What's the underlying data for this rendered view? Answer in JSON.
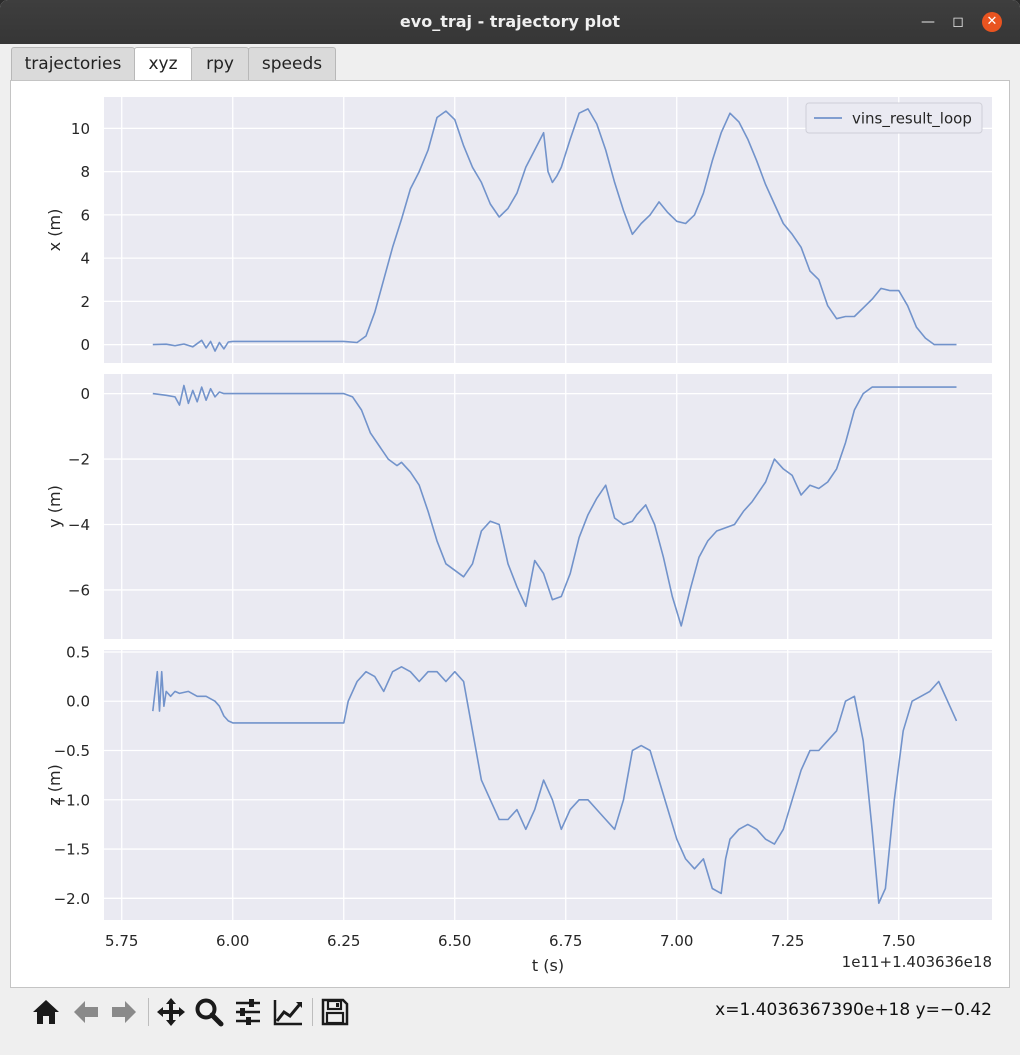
{
  "window": {
    "title": "evo_traj - trajectory plot"
  },
  "tabs": [
    {
      "label": "trajectories",
      "active": false
    },
    {
      "label": "xyz",
      "active": true
    },
    {
      "label": "rpy",
      "active": false
    },
    {
      "label": "speeds",
      "active": false
    }
  ],
  "toolbar": {
    "icons": [
      "home-icon",
      "back-arrow-icon",
      "forward-arrow-icon",
      "pan-icon",
      "zoom-icon",
      "subplots-config-icon",
      "edit-curves-icon",
      "save-icon"
    ],
    "coords": "x=1.4036367390e+18 y=−0.42"
  },
  "chart_data": [
    {
      "type": "line",
      "ylabel": "x (m)",
      "xlim": [
        5.71,
        7.71
      ],
      "ylim": [
        -0.85,
        11.45
      ],
      "yticks": [
        0,
        2,
        4,
        6,
        8,
        10
      ],
      "ytick_labels": [
        "0",
        "2",
        "4",
        "6",
        "8",
        "10"
      ],
      "legend": {
        "label": "vins_result_loop",
        "placement": "top-right"
      },
      "series": [
        {
          "name": "vins_result_loop",
          "color": "#7293cb",
          "x": [
            5.82,
            5.85,
            5.87,
            5.89,
            5.91,
            5.93,
            5.94,
            5.95,
            5.96,
            5.97,
            5.98,
            5.99,
            6.0,
            6.25,
            6.28,
            6.3,
            6.32,
            6.34,
            6.36,
            6.38,
            6.4,
            6.42,
            6.44,
            6.46,
            6.48,
            6.5,
            6.52,
            6.54,
            6.56,
            6.58,
            6.6,
            6.62,
            6.64,
            6.66,
            6.68,
            6.7,
            6.71,
            6.72,
            6.73,
            6.74,
            6.76,
            6.78,
            6.8,
            6.82,
            6.84,
            6.86,
            6.88,
            6.9,
            6.92,
            6.94,
            6.96,
            6.98,
            7.0,
            7.02,
            7.04,
            7.06,
            7.08,
            7.1,
            7.12,
            7.14,
            7.16,
            7.18,
            7.2,
            7.22,
            7.24,
            7.26,
            7.28,
            7.3,
            7.32,
            7.34,
            7.36,
            7.38,
            7.4,
            7.42,
            7.44,
            7.46,
            7.48,
            7.5,
            7.52,
            7.54,
            7.56,
            7.58,
            7.6,
            7.63
          ],
          "y": [
            0.0,
            0.02,
            -0.05,
            0.03,
            -0.1,
            0.2,
            -0.15,
            0.15,
            -0.3,
            0.1,
            -0.2,
            0.12,
            0.15,
            0.15,
            0.1,
            0.4,
            1.5,
            3.0,
            4.5,
            5.8,
            7.2,
            8.0,
            9.0,
            10.5,
            10.8,
            10.4,
            9.2,
            8.2,
            7.5,
            6.5,
            5.9,
            6.3,
            7.0,
            8.2,
            9.0,
            9.8,
            8.0,
            7.5,
            7.8,
            8.2,
            9.5,
            10.7,
            10.9,
            10.2,
            9.0,
            7.5,
            6.2,
            5.1,
            5.6,
            6.0,
            6.6,
            6.1,
            5.7,
            5.6,
            6.0,
            7.0,
            8.5,
            9.8,
            10.7,
            10.3,
            9.5,
            8.5,
            7.4,
            6.5,
            5.6,
            5.1,
            4.5,
            3.4,
            3.0,
            1.8,
            1.2,
            1.3,
            1.3,
            1.7,
            2.1,
            2.6,
            2.5,
            2.5,
            1.8,
            0.8,
            0.3,
            0.0,
            0.0,
            0.0
          ]
        }
      ]
    },
    {
      "type": "line",
      "ylabel": "y (m)",
      "xlim": [
        5.71,
        7.71
      ],
      "ylim": [
        -7.5,
        0.6
      ],
      "yticks": [
        0,
        -2,
        -4,
        -6
      ],
      "ytick_labels": [
        "0",
        "−2",
        "−4",
        "−6"
      ],
      "series": [
        {
          "name": "vins_result_loop",
          "color": "#7293cb",
          "x": [
            5.82,
            5.85,
            5.87,
            5.88,
            5.89,
            5.9,
            5.91,
            5.92,
            5.93,
            5.94,
            5.95,
            5.96,
            5.97,
            5.98,
            6.0,
            6.25,
            6.27,
            6.29,
            6.31,
            6.33,
            6.35,
            6.37,
            6.38,
            6.4,
            6.42,
            6.44,
            6.46,
            6.48,
            6.5,
            6.52,
            6.54,
            6.56,
            6.58,
            6.6,
            6.62,
            6.64,
            6.66,
            6.68,
            6.7,
            6.72,
            6.74,
            6.76,
            6.78,
            6.8,
            6.82,
            6.84,
            6.86,
            6.88,
            6.9,
            6.91,
            6.93,
            6.95,
            6.97,
            6.99,
            7.01,
            7.03,
            7.05,
            7.07,
            7.09,
            7.11,
            7.13,
            7.15,
            7.17,
            7.2,
            7.22,
            7.24,
            7.26,
            7.28,
            7.3,
            7.32,
            7.34,
            7.36,
            7.38,
            7.4,
            7.42,
            7.44,
            7.46,
            7.48,
            7.5,
            7.52,
            7.54,
            7.56,
            7.58,
            7.6,
            7.63
          ],
          "y": [
            0.0,
            -0.05,
            -0.1,
            -0.35,
            0.25,
            -0.3,
            0.1,
            -0.25,
            0.2,
            -0.2,
            0.15,
            -0.1,
            0.05,
            0.0,
            0.0,
            0.0,
            -0.1,
            -0.5,
            -1.2,
            -1.6,
            -2.0,
            -2.2,
            -2.1,
            -2.4,
            -2.8,
            -3.6,
            -4.5,
            -5.2,
            -5.4,
            -5.6,
            -5.2,
            -4.2,
            -3.9,
            -4.0,
            -5.2,
            -5.9,
            -6.5,
            -5.1,
            -5.5,
            -6.3,
            -6.2,
            -5.5,
            -4.4,
            -3.7,
            -3.2,
            -2.8,
            -3.8,
            -4.0,
            -3.9,
            -3.7,
            -3.4,
            -4.0,
            -5.0,
            -6.2,
            -7.1,
            -6.0,
            -5.0,
            -4.5,
            -4.2,
            -4.1,
            -4.0,
            -3.6,
            -3.3,
            -2.7,
            -2.0,
            -2.3,
            -2.5,
            -3.1,
            -2.8,
            -2.9,
            -2.7,
            -2.3,
            -1.5,
            -0.5,
            0.0,
            0.2,
            0.2,
            0.2,
            0.2,
            0.2,
            0.2,
            0.2,
            0.2,
            0.2,
            0.2
          ]
        }
      ]
    },
    {
      "type": "line",
      "ylabel": "z (m)",
      "xlabel": "t (s)",
      "x_offset_text": "1e11+1.403636e18",
      "xlim": [
        5.71,
        7.71
      ],
      "ylim": [
        -2.22,
        0.52
      ],
      "yticks": [
        0.5,
        0.0,
        -0.5,
        -1.0,
        -1.5,
        -2.0
      ],
      "ytick_labels": [
        "0.5",
        "0.0",
        "−0.5",
        "−1.0",
        "−1.5",
        "−2.0"
      ],
      "xticks": [
        5.75,
        6.0,
        6.25,
        6.5,
        6.75,
        7.0,
        7.25,
        7.5
      ],
      "xtick_labels": [
        "5.75",
        "6.00",
        "6.25",
        "6.50",
        "6.75",
        "7.00",
        "7.25",
        "7.50"
      ],
      "series": [
        {
          "name": "vins_result_loop",
          "color": "#7293cb",
          "x": [
            5.82,
            5.83,
            5.835,
            5.84,
            5.845,
            5.85,
            5.86,
            5.87,
            5.88,
            5.9,
            5.92,
            5.94,
            5.96,
            5.97,
            5.98,
            5.99,
            6.0,
            6.25,
            6.26,
            6.28,
            6.3,
            6.32,
            6.34,
            6.36,
            6.38,
            6.4,
            6.42,
            6.44,
            6.46,
            6.48,
            6.5,
            6.52,
            6.54,
            6.56,
            6.58,
            6.6,
            6.62,
            6.64,
            6.66,
            6.68,
            6.7,
            6.72,
            6.74,
            6.76,
            6.78,
            6.8,
            6.82,
            6.84,
            6.86,
            6.88,
            6.9,
            6.92,
            6.94,
            6.96,
            6.98,
            7.0,
            7.02,
            7.04,
            7.06,
            7.08,
            7.1,
            7.11,
            7.12,
            7.14,
            7.16,
            7.18,
            7.2,
            7.22,
            7.24,
            7.26,
            7.28,
            7.3,
            7.32,
            7.34,
            7.36,
            7.38,
            7.4,
            7.42,
            7.44,
            7.455,
            7.47,
            7.49,
            7.51,
            7.53,
            7.55,
            7.57,
            7.59,
            7.61,
            7.63
          ],
          "y": [
            -0.1,
            0.3,
            -0.1,
            0.3,
            -0.05,
            0.1,
            0.05,
            0.1,
            0.08,
            0.1,
            0.05,
            0.05,
            0.0,
            -0.05,
            -0.15,
            -0.2,
            -0.22,
            -0.22,
            0.0,
            0.2,
            0.3,
            0.25,
            0.1,
            0.3,
            0.35,
            0.3,
            0.2,
            0.3,
            0.3,
            0.2,
            0.3,
            0.2,
            -0.3,
            -0.8,
            -1.0,
            -1.2,
            -1.2,
            -1.1,
            -1.3,
            -1.1,
            -0.8,
            -1.0,
            -1.3,
            -1.1,
            -1.0,
            -1.0,
            -1.1,
            -1.2,
            -1.3,
            -1.0,
            -0.5,
            -0.45,
            -0.5,
            -0.8,
            -1.1,
            -1.4,
            -1.6,
            -1.7,
            -1.6,
            -1.9,
            -1.95,
            -1.6,
            -1.4,
            -1.3,
            -1.25,
            -1.3,
            -1.4,
            -1.45,
            -1.3,
            -1.0,
            -0.7,
            -0.5,
            -0.5,
            -0.4,
            -0.3,
            0.0,
            0.05,
            -0.4,
            -1.3,
            -2.05,
            -1.9,
            -1.0,
            -0.3,
            0.0,
            0.05,
            0.1,
            0.2,
            0.0,
            -0.2
          ]
        }
      ]
    }
  ]
}
